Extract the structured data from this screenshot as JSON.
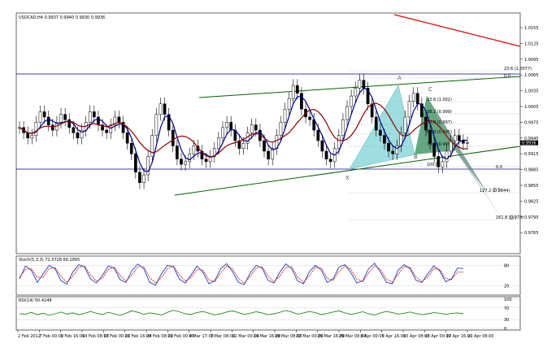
{
  "chart_data": {
    "type": "candlestick",
    "symbol_line": "USDCAD,H4  0.9937 0.9940 0.9930 0.9936",
    "price_ticks": [
      "1.0155",
      "1.0125",
      "1.0095",
      "1.0065",
      "1.0035",
      "1.0005",
      "0.9975",
      "0.9945",
      "0.9915",
      "0.9885",
      "0.9855",
      "0.9825",
      "0.9795",
      "0.9765"
    ],
    "current_price": "0.9936",
    "time_ticks": [
      "2 Feb 2012",
      "7 Feb 00:00",
      "9 Feb 16:00",
      "14 Feb 08:00",
      "17 Feb 00:00",
      "21 Feb 16:00",
      "24 Feb 08:00",
      "29 Feb 00:00",
      "4 Mar 17:00",
      "7 Mar 08:00",
      "12 Mar 00:00",
      "14 Mar 16:00",
      "19 Mar 08:00",
      "22 Mar 00:00",
      "26 Mar 16:00",
      "29 Mar 08:00",
      "3 Apr 00:00",
      "5 Apr 16:00",
      "10 Apr 08:00",
      "13 Apr 00:00",
      "17 Apr 16:00",
      "20 Apr 08:00"
    ],
    "fib_labels": [
      "23.6 (1.0077)",
      "0.0",
      "23.6 (1.002)",
      "38.2 (0.999)",
      "50.0 (0.997)",
      "61.8 (0.995)",
      "76.4 (0.993)",
      "100.0",
      "0.0",
      "127.2 (0.9844)",
      "161.8 (0.978)"
    ],
    "pattern_points": [
      "A",
      "B",
      "C",
      "X",
      "D?",
      "D?"
    ],
    "stoch": {
      "header": "Stoch(5,3,3) 71.3728 60.1895",
      "levels": [
        "80",
        "20"
      ],
      "k": [
        40,
        78,
        65,
        30,
        55,
        80,
        70,
        35,
        25,
        60,
        82,
        75,
        40,
        28,
        50,
        78,
        72,
        38,
        30,
        65,
        84,
        70,
        30,
        22,
        55,
        80,
        76,
        40,
        28,
        52,
        78,
        60,
        26,
        35,
        70,
        85,
        62,
        30,
        24,
        58,
        80,
        72,
        36,
        28,
        60,
        84,
        70,
        34,
        26,
        62,
        80,
        66,
        30,
        40,
        75,
        82,
        58,
        28,
        35,
        70,
        86,
        60,
        30,
        26,
        66,
        82,
        70,
        36,
        30,
        55,
        78,
        64,
        32,
        40,
        72,
        71
      ],
      "d": [
        45,
        68,
        70,
        45,
        45,
        70,
        74,
        48,
        30,
        48,
        74,
        78,
        52,
        34,
        42,
        68,
        75,
        50,
        34,
        52,
        76,
        76,
        44,
        28,
        44,
        70,
        78,
        52,
        34,
        44,
        68,
        66,
        38,
        32,
        58,
        78,
        70,
        42,
        28,
        48,
        72,
        76,
        48,
        32,
        48,
        74,
        76,
        46,
        30,
        50,
        74,
        72,
        42,
        36,
        62,
        78,
        68,
        40,
        32,
        58,
        78,
        68,
        40,
        30,
        54,
        76,
        74,
        46,
        32,
        46,
        70,
        68,
        42,
        38,
        60,
        60
      ]
    },
    "rsi": {
      "header": "RSI(14) 50.4246",
      "levels": [
        "100",
        "70",
        "30",
        "0"
      ],
      "values": [
        50,
        48,
        55,
        47,
        52,
        45,
        50,
        56,
        49,
        53,
        47,
        51,
        58,
        52,
        47,
        55,
        50,
        45,
        52,
        60,
        55,
        48,
        53,
        50,
        46,
        55,
        62,
        57,
        50,
        48,
        54,
        58,
        52,
        46,
        50,
        56,
        60,
        54,
        48,
        52,
        57,
        53,
        47,
        50,
        55,
        61,
        56,
        49,
        53,
        58,
        54,
        47,
        51,
        56,
        60,
        53,
        48,
        52,
        57,
        50,
        46,
        53,
        58,
        54,
        49,
        52,
        56,
        51,
        47,
        50,
        54,
        52,
        48,
        51,
        53,
        50
      ]
    },
    "price_series": [
      0.9965,
      0.9955,
      0.9945,
      0.995,
      0.9975,
      0.9995,
      0.9985,
      0.997,
      0.996,
      0.9975,
      0.999,
      0.998,
      0.9965,
      0.9955,
      0.9945,
      0.996,
      0.9975,
      0.9995,
      0.9985,
      0.997,
      0.996,
      0.9955,
      0.997,
      0.9985,
      0.9975,
      0.9955,
      0.9935,
      0.9915,
      0.988,
      0.986,
      0.9875,
      0.991,
      0.995,
      0.999,
      1.001,
      0.999,
      0.996,
      0.993,
      0.9905,
      0.9895,
      0.99,
      0.9915,
      0.993,
      0.992,
      0.9905,
      0.99,
      0.991,
      0.9925,
      0.9945,
      0.9965,
      0.9975,
      0.996,
      0.994,
      0.9925,
      0.9935,
      0.9955,
      0.997,
      0.996,
      0.994,
      0.992,
      0.9905,
      0.9925,
      0.995,
      0.9975,
      1.0,
      1.002,
      1.0045,
      1.003,
      1.0,
      0.9985,
      0.998,
      0.996,
      0.994,
      0.992,
      0.9905,
      0.99,
      0.9925,
      0.995,
      0.998,
      1.0005,
      1.0025,
      1.004,
      1.0055,
      1.004,
      1.001,
      0.9985,
      0.996,
      0.995,
      0.9935,
      0.992,
      0.9915,
      0.993,
      0.9955,
      0.9985,
      1.0015,
      1.003,
      1.001,
      0.9985,
      0.996,
      0.9935,
      0.991,
      0.989,
      0.99,
      0.992,
      0.994,
      0.995,
      0.994,
      0.9935,
      0.9936
    ]
  }
}
